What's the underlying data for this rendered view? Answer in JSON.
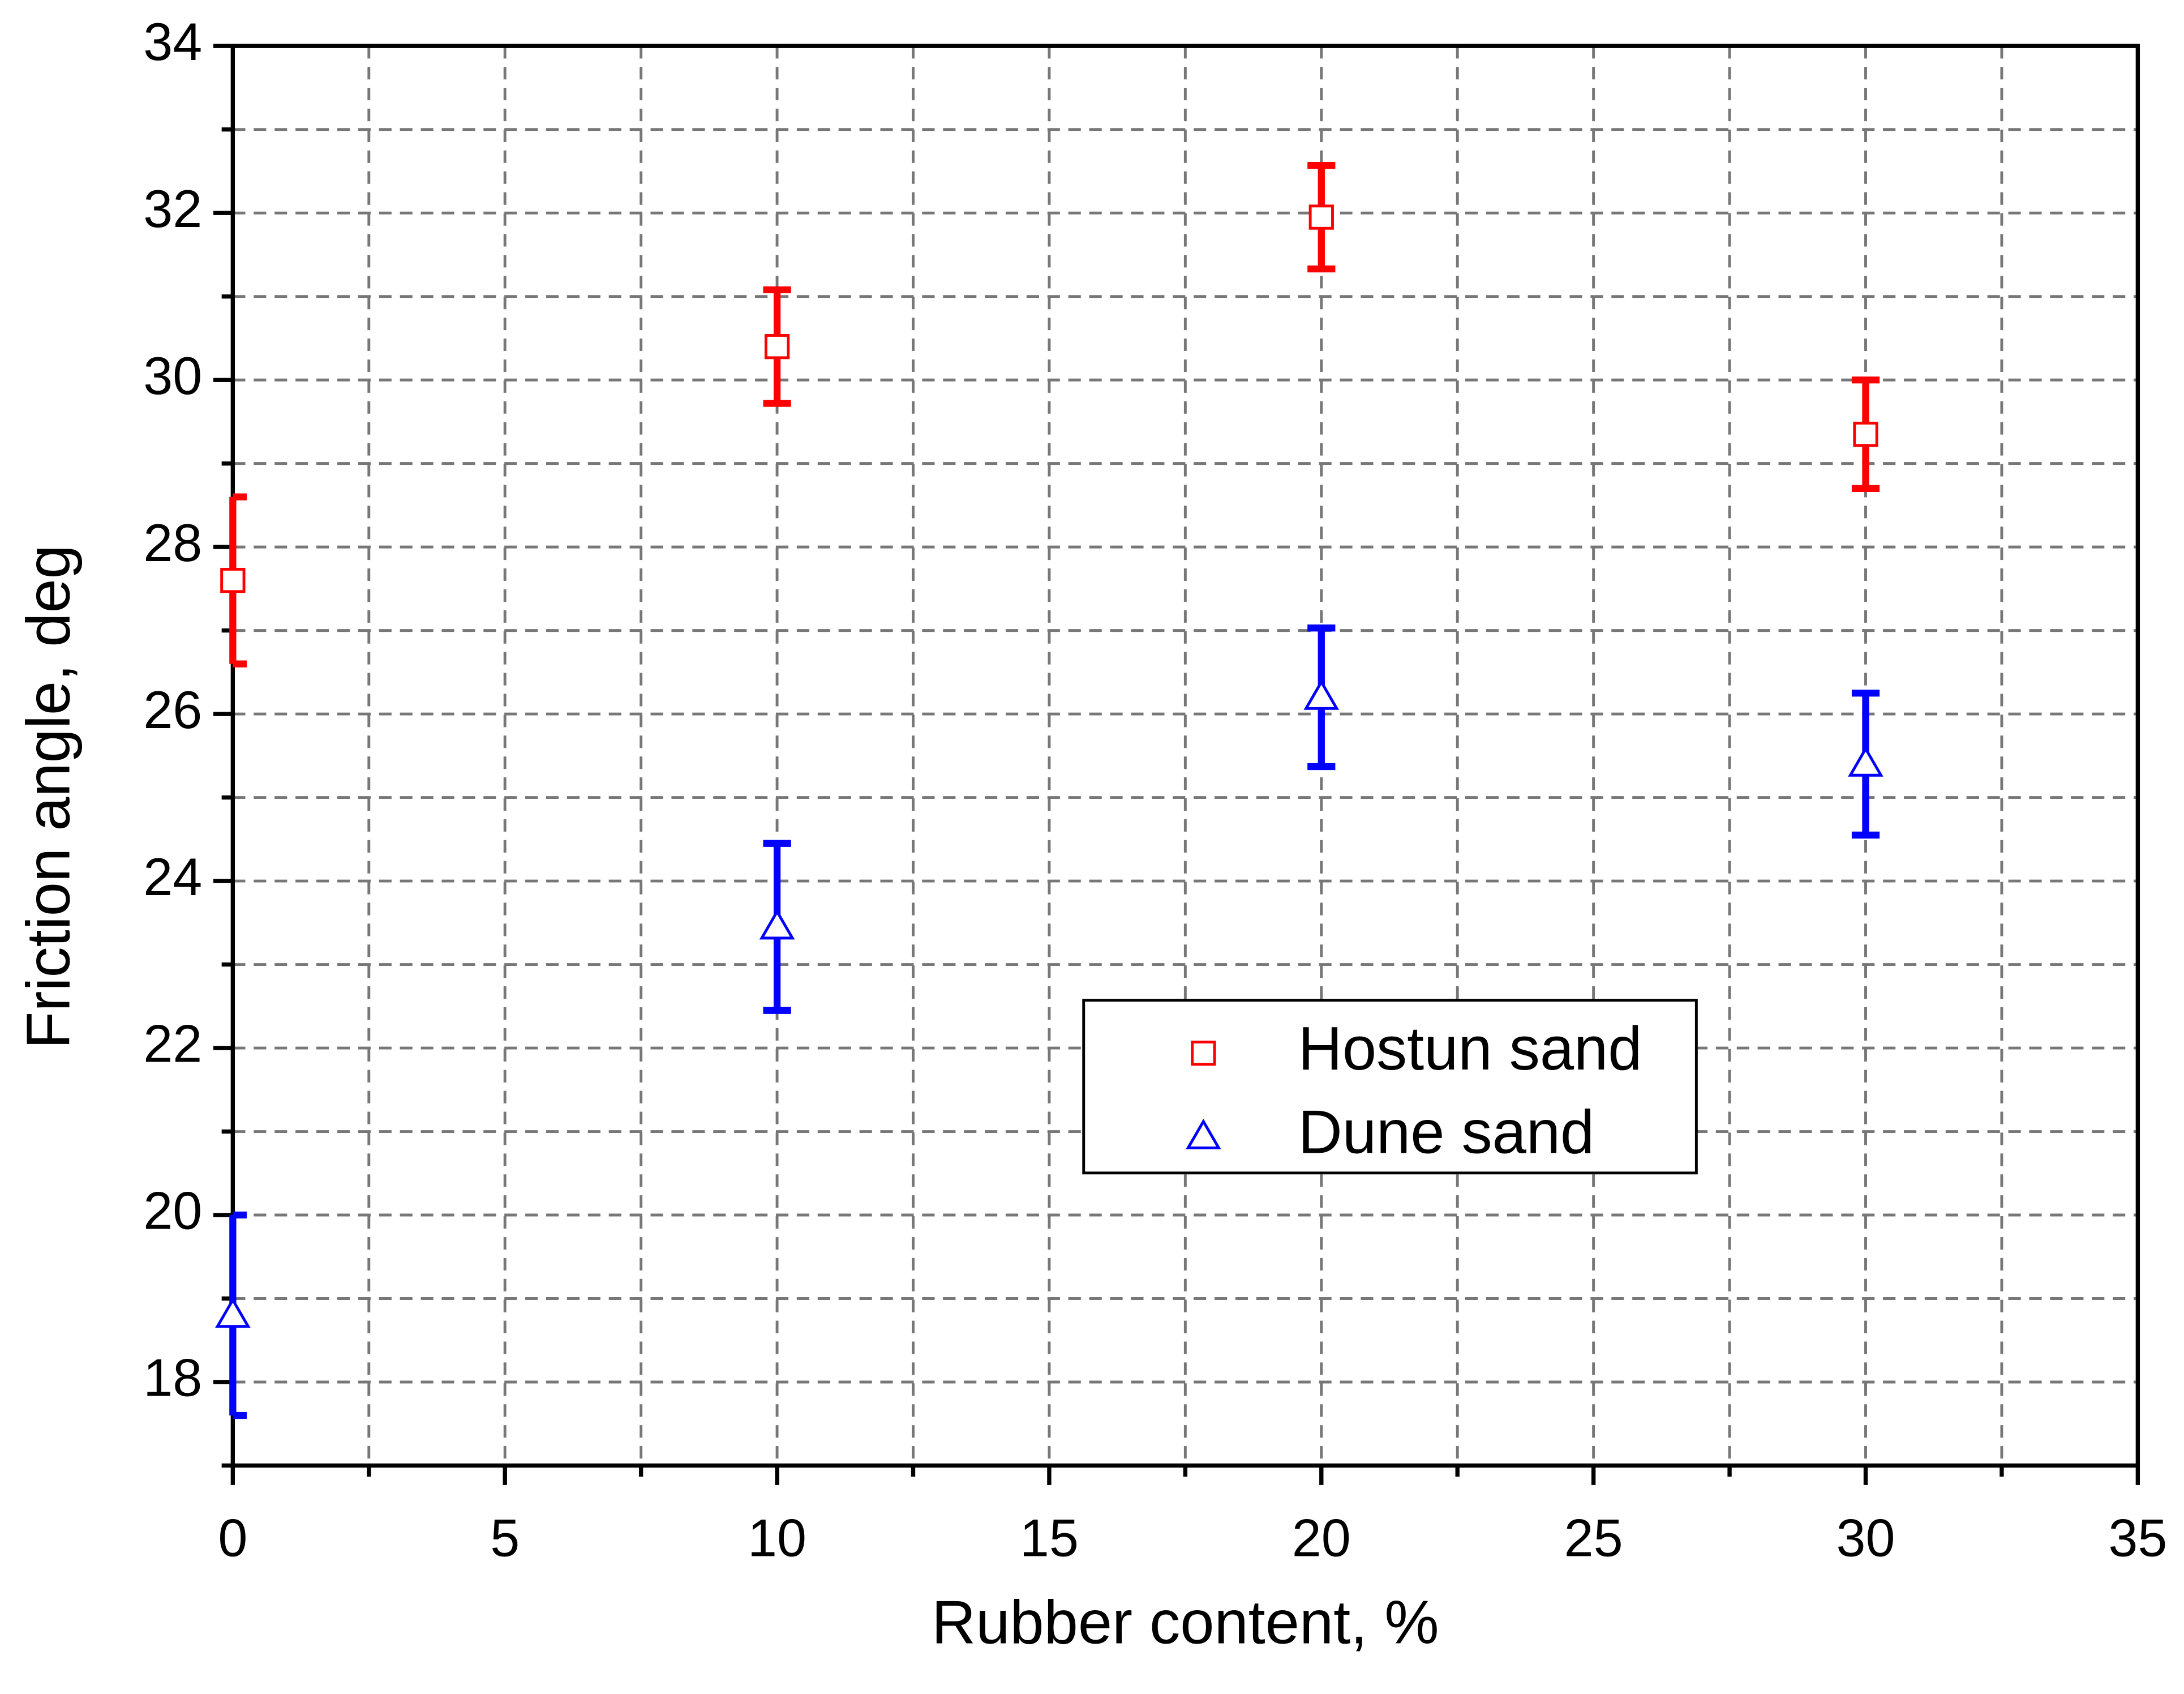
{
  "chart_data": {
    "type": "scatter",
    "xlabel": "Rubber content, %",
    "ylabel": "Friction angle, deg",
    "xlim": [
      0,
      35
    ],
    "ylim": [
      17,
      34
    ],
    "xticks": [
      0,
      5,
      10,
      15,
      20,
      25,
      30,
      35
    ],
    "yticks": [
      18,
      20,
      22,
      24,
      26,
      28,
      30,
      32,
      34
    ],
    "xminorticks": [
      2.5,
      7.5,
      12.5,
      17.5,
      22.5,
      27.5,
      32.5
    ],
    "yminorticks": [
      17,
      19,
      21,
      23,
      25,
      27,
      29,
      31,
      33
    ],
    "grid": true,
    "legend": "lower right",
    "series": [
      {
        "name": "Hostun sand",
        "color": "#ff0000",
        "marker": "square",
        "x": [
          0,
          10,
          20,
          30
        ],
        "values": [
          27.6,
          30.4,
          31.95,
          29.35
        ],
        "errors": [
          1.0,
          0.68,
          0.62,
          0.65
        ]
      },
      {
        "name": "Dune sand",
        "color": "#0000ff",
        "marker": "triangle",
        "x": [
          0,
          10,
          20,
          30
        ],
        "values": [
          18.8,
          23.45,
          26.2,
          25.4
        ],
        "errors": [
          1.2,
          1.0,
          0.83,
          0.85
        ]
      }
    ]
  }
}
